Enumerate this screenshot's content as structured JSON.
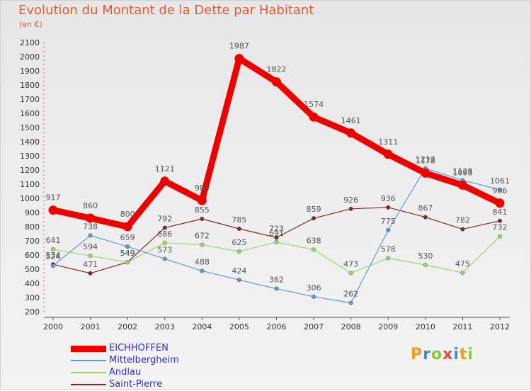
{
  "title": "Evolution du Montant de la Dette par Habitant",
  "subtitle": "(en €)",
  "logo_text": "Proxiti",
  "chart_data": {
    "type": "line",
    "title": "Evolution du Montant de la Dette par Habitant",
    "subtitle": "(en €)",
    "xlabel": "",
    "ylabel": "",
    "x": [
      "2000",
      "2001",
      "2002",
      "2003",
      "2004",
      "2005",
      "2006",
      "2007",
      "2008",
      "2009",
      "2010",
      "2011",
      "2012"
    ],
    "yticks": [
      200,
      300,
      400,
      500,
      600,
      700,
      800,
      900,
      1000,
      1100,
      1200,
      1300,
      1400,
      1500,
      1600,
      1700,
      1800,
      1900,
      2000,
      2100
    ],
    "ylim": [
      200,
      2100
    ],
    "grid": false,
    "legend_position": "bottom-left",
    "series": [
      {
        "name": "EICHHOFFEN",
        "color": "#ee0000",
        "values": [
          917,
          860,
          800,
          1121,
          985,
          1987,
          1822,
          1574,
          1461,
          1311,
          1178,
          1093,
          966
        ]
      },
      {
        "name": "Mittelbergheim",
        "color": "#5b9bd5",
        "values": [
          524,
          738,
          659,
          573,
          488,
          424,
          362,
          306,
          262,
          775,
          1212,
          1128,
          1061
        ]
      },
      {
        "name": "Andlau",
        "color": "#99d96b",
        "values": [
          641,
          594,
          549,
          686,
          672,
          625,
          691,
          638,
          473,
          578,
          530,
          475,
          732
        ]
      },
      {
        "name": "Saint-Pierre",
        "color": "#7b2a2a",
        "values": [
          534,
          471,
          549,
          792,
          855,
          785,
          723,
          859,
          926,
          936,
          867,
          782,
          841
        ]
      }
    ]
  }
}
